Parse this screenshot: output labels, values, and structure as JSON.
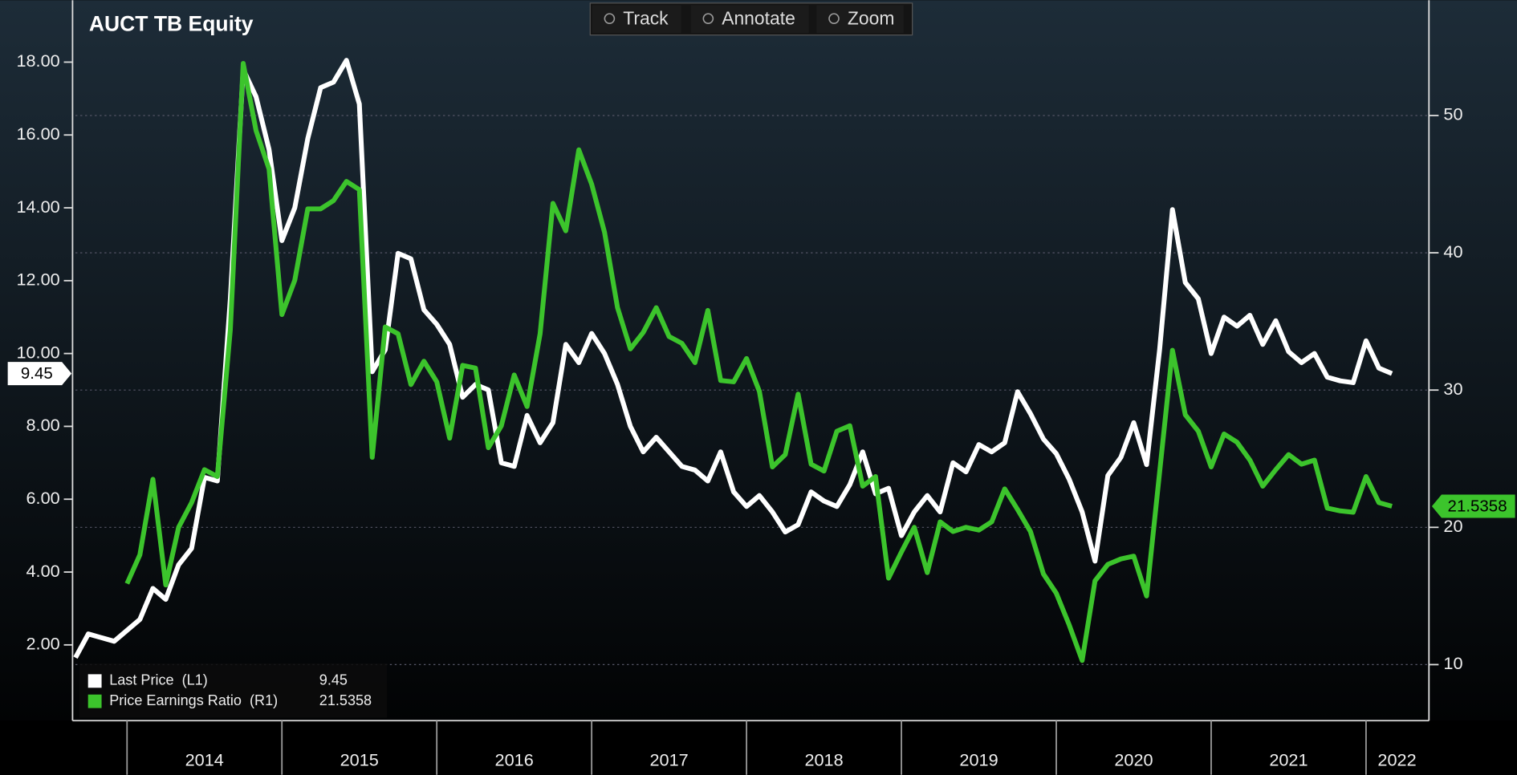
{
  "toolbar": [
    "Track",
    "Annotate",
    "Zoom"
  ],
  "chart_data": {
    "type": "line",
    "title": "AUCT TB Equity",
    "legend": "lower left",
    "grid": true,
    "x": [
      2013.667,
      2013.75,
      2013.833,
      2013.917,
      2014,
      2014.083,
      2014.167,
      2014.25,
      2014.333,
      2014.417,
      2014.5,
      2014.583,
      2014.667,
      2014.75,
      2014.833,
      2014.917,
      2015,
      2015.083,
      2015.167,
      2015.25,
      2015.333,
      2015.417,
      2015.5,
      2015.583,
      2015.667,
      2015.75,
      2015.833,
      2015.917,
      2016,
      2016.083,
      2016.167,
      2016.25,
      2016.333,
      2016.417,
      2016.5,
      2016.583,
      2016.667,
      2016.75,
      2016.833,
      2016.917,
      2017,
      2017.083,
      2017.167,
      2017.25,
      2017.333,
      2017.417,
      2017.5,
      2017.583,
      2017.667,
      2017.75,
      2017.833,
      2017.917,
      2018,
      2018.083,
      2018.167,
      2018.25,
      2018.333,
      2018.417,
      2018.5,
      2018.583,
      2018.667,
      2018.75,
      2018.833,
      2018.917,
      2019,
      2019.083,
      2019.167,
      2019.25,
      2019.333,
      2019.417,
      2019.5,
      2019.583,
      2019.667,
      2019.75,
      2019.833,
      2019.917,
      2020,
      2020.083,
      2020.167,
      2020.25,
      2020.333,
      2020.417,
      2020.5,
      2020.583,
      2020.667,
      2020.75,
      2020.833,
      2020.917,
      2021,
      2021.083,
      2021.167,
      2021.25,
      2021.333,
      2021.417,
      2021.5,
      2021.583,
      2021.667,
      2021.75,
      2021.833,
      2021.917,
      2022,
      2022.083,
      2022.167
    ],
    "xlim": [
      2013.667,
      2022.4
    ],
    "xticks": [
      2014,
      2015,
      2016,
      2017,
      2018,
      2019,
      2020,
      2021,
      2022
    ],
    "ylim": [
      0,
      19.7
    ],
    "yticks": [
      {
        "value": 2,
        "label": "2.00"
      },
      {
        "value": 4,
        "label": "4.00"
      },
      {
        "value": 6,
        "label": "6.00"
      },
      {
        "value": 8,
        "label": "8.00"
      },
      {
        "value": 10,
        "label": "10.00"
      },
      {
        "value": 12,
        "label": "12.00"
      },
      {
        "value": 14,
        "label": "14.00"
      },
      {
        "value": 16,
        "label": "16.00"
      },
      {
        "value": 18,
        "label": "18.00"
      }
    ],
    "y2lim": [
      6.13,
      58.4
    ],
    "y2ticks": [
      10,
      20,
      30,
      40,
      50
    ],
    "series": [
      {
        "name": "Last Price  (L1)",
        "color": "#ffffff",
        "axis": "y",
        "values": [
          1.65,
          2.3,
          2.2,
          2.1,
          2.4,
          2.7,
          3.55,
          3.25,
          4.2,
          4.65,
          6.6,
          6.5,
          11.5,
          17.8,
          17.05,
          15.6,
          13.1,
          14.0,
          15.9,
          17.3,
          17.45,
          18.05,
          16.85,
          9.5,
          10.1,
          12.75,
          12.6,
          11.2,
          10.8,
          10.25,
          8.8,
          9.15,
          9.0,
          7.0,
          6.9,
          8.3,
          7.55,
          8.1,
          10.25,
          9.75,
          10.55,
          10.0,
          9.15,
          8.0,
          7.3,
          7.7,
          7.3,
          6.9,
          6.8,
          6.5,
          7.3,
          6.2,
          5.8,
          6.1,
          5.65,
          5.1,
          5.3,
          6.2,
          5.95,
          5.8,
          6.4,
          7.3,
          6.15,
          6.3,
          5.0,
          5.65,
          6.1,
          5.65,
          7.0,
          6.75,
          7.5,
          7.3,
          7.55,
          8.95,
          8.35,
          7.65,
          7.25,
          6.55,
          5.65,
          4.3,
          6.65,
          7.15,
          8.1,
          6.95,
          10.1,
          13.95,
          11.95,
          11.5,
          10.0,
          11.0,
          10.75,
          11.05,
          10.25,
          10.9,
          10.05,
          9.75,
          10.0,
          9.35,
          9.25,
          9.2,
          10.35,
          9.6,
          9.45
        ]
      },
      {
        "name": "Price Earnings Ratio  (R1)",
        "color": "#3cc42c",
        "axis": "y2",
        "values": [
          null,
          null,
          null,
          null,
          15.9,
          18.0,
          23.5,
          15.8,
          20.0,
          21.8,
          24.2,
          23.7,
          34.4,
          53.8,
          48.9,
          46.1,
          35.5,
          38.0,
          43.2,
          43.2,
          43.8,
          45.2,
          44.6,
          25.1,
          34.6,
          34.1,
          30.4,
          32.1,
          30.6,
          26.5,
          31.8,
          31.6,
          25.8,
          27.4,
          31.1,
          28.8,
          34.1,
          43.6,
          41.6,
          47.5,
          45.0,
          41.5,
          36.0,
          33.0,
          34.2,
          36.0,
          33.9,
          33.4,
          32.0,
          35.8,
          30.7,
          30.6,
          32.3,
          29.9,
          24.4,
          25.3,
          29.7,
          24.6,
          24.1,
          27.0,
          27.4,
          23.0,
          23.7,
          16.3,
          18.2,
          20.0,
          16.7,
          20.4,
          19.7,
          20.0,
          19.8,
          20.4,
          22.8,
          21.3,
          19.7,
          16.6,
          15.2,
          12.9,
          10.3,
          16.1,
          17.3,
          17.7,
          17.9,
          15.0,
          24.0,
          32.9,
          28.2,
          27.0,
          24.4,
          26.8,
          26.2,
          24.9,
          23.0,
          24.2,
          25.3,
          24.6,
          24.9,
          21.4,
          21.2,
          21.1,
          23.7,
          21.8,
          21.5358
        ]
      }
    ]
  }
}
